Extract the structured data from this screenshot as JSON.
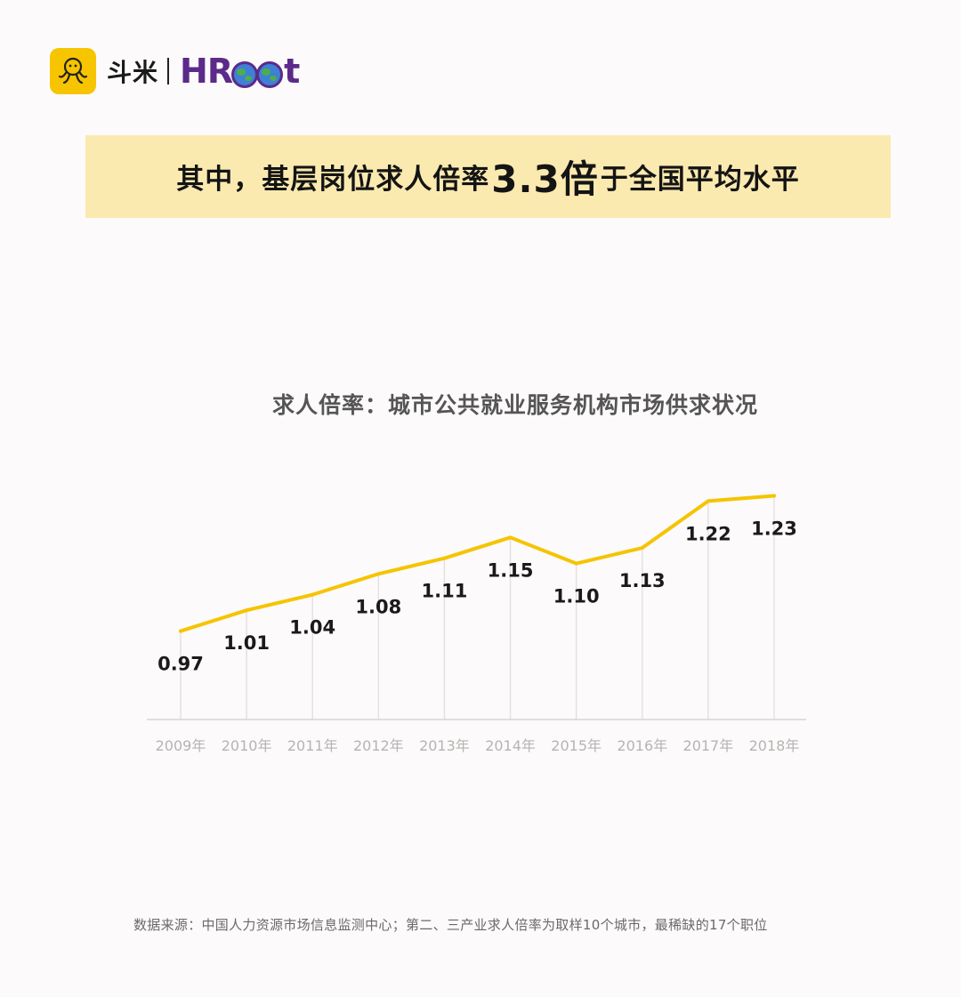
{
  "brand": {
    "cn_name": "斗米",
    "en_name_prefix": "HR",
    "en_name_suffix": "t",
    "accent_color": "#f7c400",
    "purple_color": "#5b2a8a",
    "logo_icon": "octopus-icon"
  },
  "banner": {
    "text_before": "其中，基层岗位求人倍率",
    "highlight": "3.3倍",
    "text_after": "于全国平均水平",
    "background": "#fbeab0"
  },
  "chart_data": {
    "type": "line",
    "title": "求人倍率：城市公共就业服务机构市场供求状况",
    "categories": [
      "2009年",
      "2010年",
      "2011年",
      "2012年",
      "2013年",
      "2014年",
      "2015年",
      "2016年",
      "2017年",
      "2018年"
    ],
    "values": [
      0.97,
      1.01,
      1.04,
      1.08,
      1.11,
      1.15,
      1.1,
      1.13,
      1.22,
      1.23
    ],
    "value_labels": [
      "0.97",
      "1.01",
      "1.04",
      "1.08",
      "1.11",
      "1.15",
      "1.10",
      "1.13",
      "1.22",
      "1.23"
    ],
    "ylim": [
      0.8,
      1.26
    ],
    "line_color": "#f5c400",
    "grid": "vertical drop lines",
    "legend": "none"
  },
  "footnote": "数据来源：中国人力资源市场信息监测中心；第二、三产业求人倍率为取样10个城市，最稀缺的17个职位"
}
